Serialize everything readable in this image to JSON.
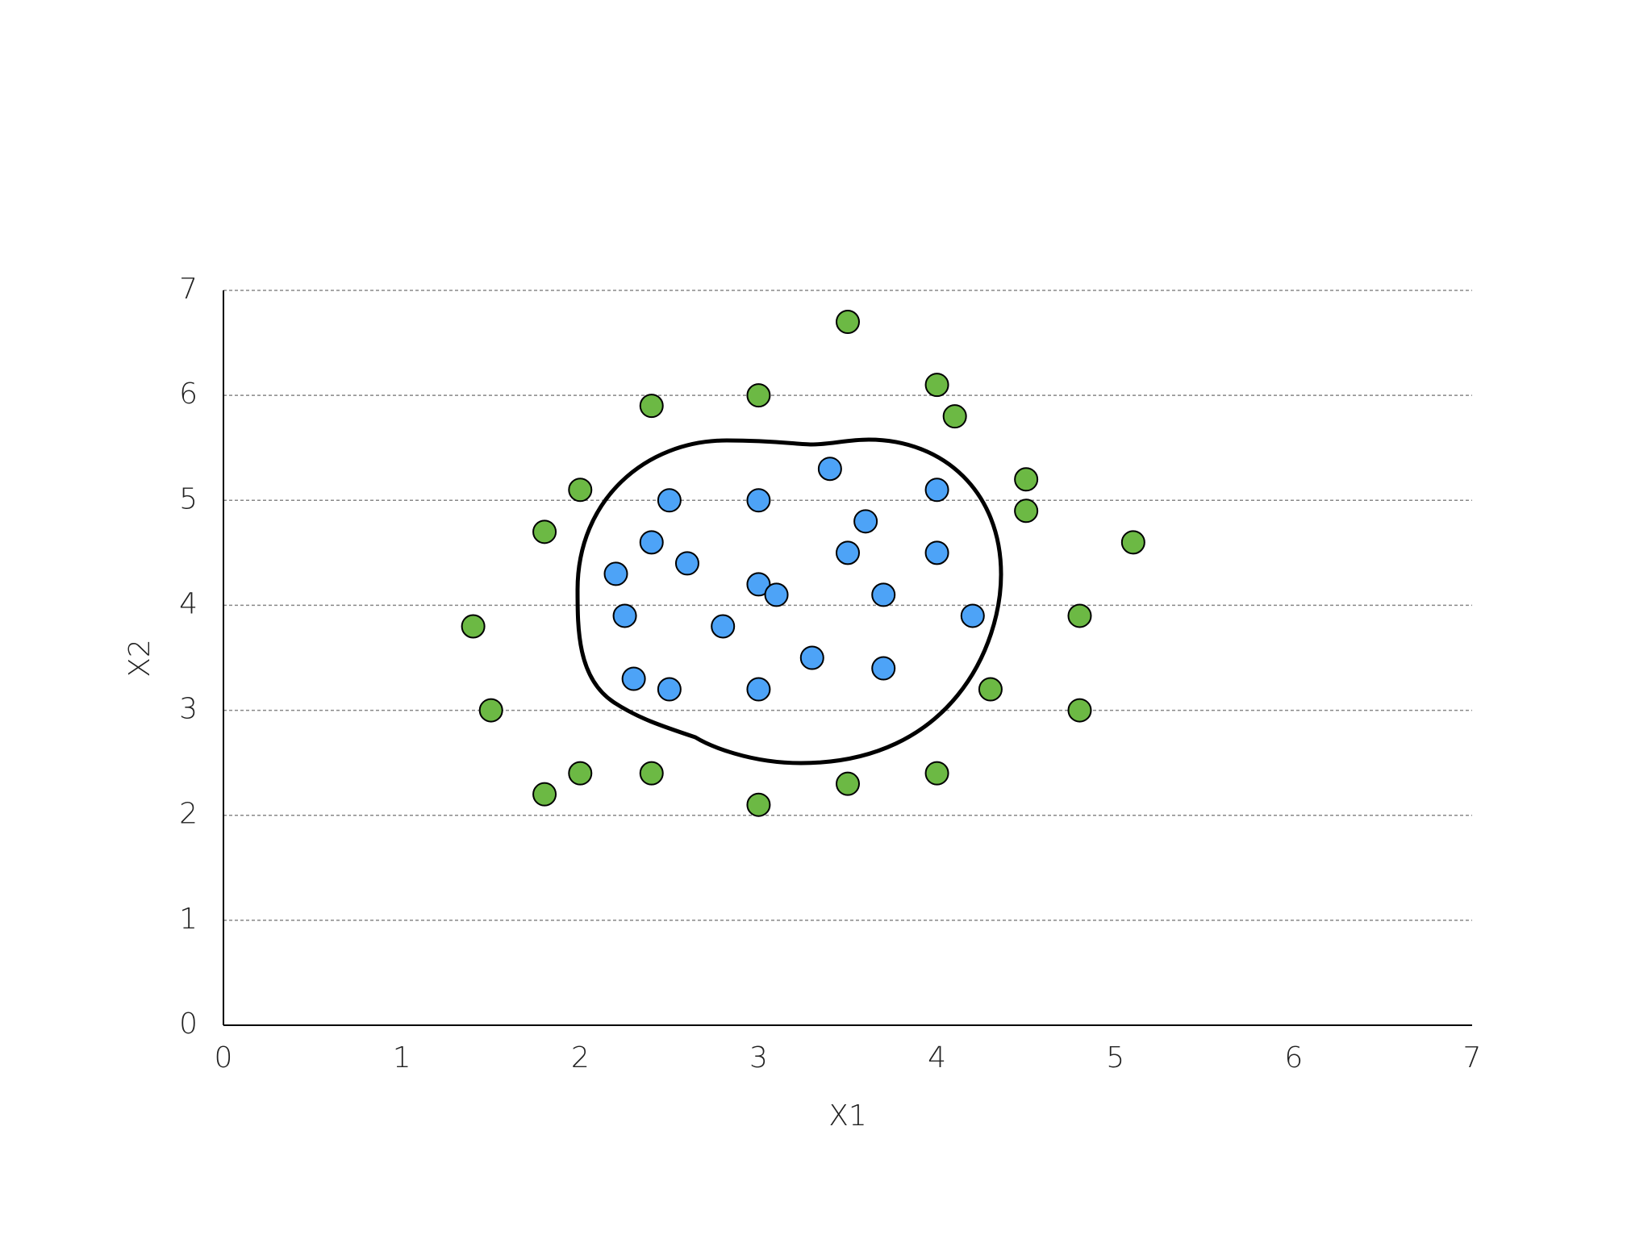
{
  "chart_data": {
    "type": "scatter",
    "xlabel": "X1",
    "ylabel": "X2",
    "xlim": [
      0,
      7
    ],
    "ylim": [
      0,
      7
    ],
    "xticks": [
      0,
      1,
      2,
      3,
      4,
      5,
      6,
      7
    ],
    "yticks": [
      0,
      1,
      2,
      3,
      4,
      5,
      6,
      7
    ],
    "grid": true,
    "series": [
      {
        "color": "#6cb944",
        "x": [
          3.5,
          2.4,
          3,
          4,
          4.1,
          2,
          1.8,
          4.5,
          4.5,
          5.1,
          1.4,
          4.8,
          1.5,
          4.3,
          4.8,
          1.8,
          2,
          2.4,
          3,
          3.5,
          4
        ],
        "values": [
          6.7,
          5.9,
          6,
          6.1,
          5.8,
          5.1,
          4.7,
          5.2,
          4.9,
          4.6,
          3.8,
          3.9,
          3,
          3.2,
          3,
          2.2,
          2.4,
          2.4,
          2.1,
          2.3,
          2.4
        ]
      },
      {
        "color": "#4da3f7",
        "x": [
          3.4,
          2.5,
          3,
          4,
          3.6,
          2.4,
          3.5,
          4,
          2.6,
          2.2,
          3,
          3.1,
          3.7,
          2.25,
          4.2,
          2.8,
          3.3,
          3.7,
          2.3,
          2.5,
          3
        ],
        "values": [
          5.3,
          5,
          5,
          5.1,
          4.8,
          4.6,
          4.5,
          4.5,
          4.4,
          4.3,
          4.2,
          4.1,
          4.1,
          3.9,
          3.9,
          3.8,
          3.5,
          3.4,
          3.3,
          3.2,
          3.2
        ]
      }
    ]
  }
}
